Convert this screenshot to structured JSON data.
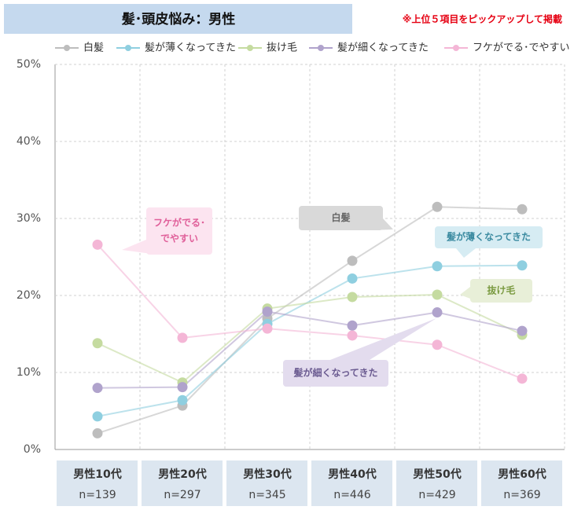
{
  "chart_data": {
    "type": "line",
    "title": "髪･頭皮悩み：男性",
    "note": "※上位５項目をピックアップして掲載",
    "categories": [
      "男性10代",
      "男性20代",
      "男性30代",
      "男性40代",
      "男性50代",
      "男性60代"
    ],
    "category_counts": [
      "n=139",
      "n=297",
      "n=345",
      "n=446",
      "n=429",
      "n=369"
    ],
    "series": [
      {
        "name": "白髪",
        "color": "#bdbdbd",
        "values": [
          2.1,
          5.7,
          17.0,
          24.5,
          31.5,
          31.2
        ]
      },
      {
        "name": "髪が薄くなってきた",
        "color": "#8fcfe0",
        "values": [
          4.3,
          6.4,
          16.3,
          22.2,
          23.8,
          23.9
        ]
      },
      {
        "name": "抜け毛",
        "color": "#c5dba0",
        "values": [
          13.8,
          8.7,
          18.3,
          19.8,
          20.1,
          14.9
        ]
      },
      {
        "name": "髪が細くなってきた",
        "color": "#b0a3cc",
        "values": [
          8.0,
          8.1,
          17.9,
          16.1,
          17.8,
          15.4
        ]
      },
      {
        "name": "フケがでる･でやすい",
        "color": "#f4b6d6",
        "values": [
          26.6,
          14.5,
          15.7,
          14.8,
          13.6,
          9.2
        ]
      }
    ],
    "annotations": [
      [
        "白髪"
      ],
      [
        "髪が薄くなってきた"
      ],
      [
        "抜け毛"
      ],
      [
        "髪が細くなってきた"
      ],
      [
        "フケがでる･",
        "でやすい"
      ]
    ],
    "ylim": [
      0,
      50
    ],
    "yticks": [
      {
        "value": 0,
        "label": "0%"
      },
      {
        "value": 10,
        "label": "10%"
      },
      {
        "value": 20,
        "label": "20%"
      },
      {
        "value": 30,
        "label": "30%"
      },
      {
        "value": 40,
        "label": "40%"
      },
      {
        "value": 50,
        "label": "50%"
      }
    ],
    "grid": true
  }
}
